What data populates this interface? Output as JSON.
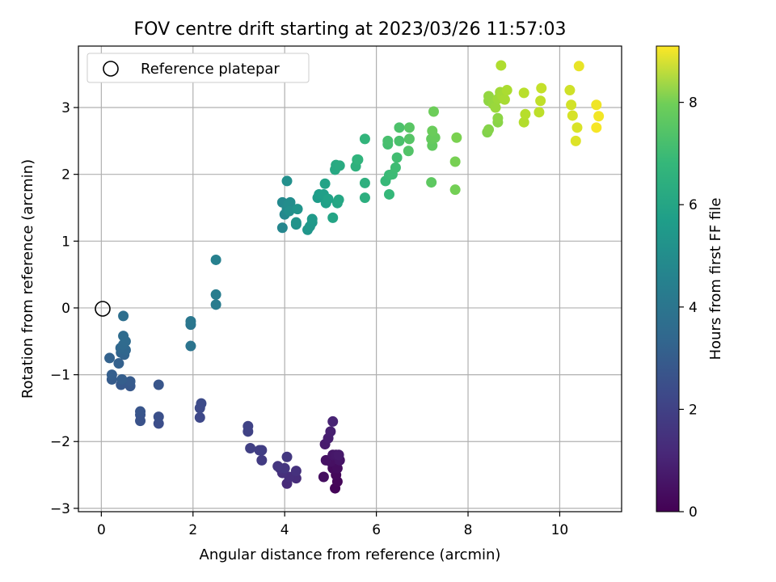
{
  "chart_data": {
    "type": "scatter",
    "title": "FOV centre drift starting at 2023/03/26 11:57:03",
    "xlabel": "Angular distance from reference (arcmin)",
    "ylabel": "Rotation from reference (arcmin)",
    "xlim": [
      -0.5,
      11.35
    ],
    "ylim": [
      -3.05,
      3.92
    ],
    "xticks": [
      0,
      2,
      4,
      6,
      8,
      10
    ],
    "yticks": [
      -3,
      -2,
      -1,
      0,
      1,
      2,
      3
    ],
    "grid": true,
    "legend": {
      "position": "top-left",
      "entries": [
        {
          "label": "Reference platepar",
          "marker": "open-circle"
        }
      ]
    },
    "reference_point": {
      "x": 0,
      "y": 0
    },
    "colorbar": {
      "label": "Hours from first FF file",
      "colormap": "viridis",
      "range": [
        0,
        9.1
      ],
      "ticks": [
        0,
        2,
        4,
        6,
        8
      ]
    },
    "points": [
      {
        "x": 5.1,
        "y": -2.7,
        "t": 0.1
      },
      {
        "x": 5.15,
        "y": -2.6,
        "t": 0.15
      },
      {
        "x": 5.12,
        "y": -2.5,
        "t": 0.2
      },
      {
        "x": 5.05,
        "y": -2.4,
        "t": 0.25
      },
      {
        "x": 5.15,
        "y": -2.4,
        "t": 0.3
      },
      {
        "x": 4.85,
        "y": -2.53,
        "t": 0.35
      },
      {
        "x": 5.0,
        "y": -2.3,
        "t": 0.4
      },
      {
        "x": 4.9,
        "y": -2.28,
        "t": 0.45
      },
      {
        "x": 5.2,
        "y": -2.28,
        "t": 0.5
      },
      {
        "x": 5.05,
        "y": -2.2,
        "t": 0.55
      },
      {
        "x": 5.12,
        "y": -2.2,
        "t": 0.6
      },
      {
        "x": 5.18,
        "y": -2.2,
        "t": 0.65
      },
      {
        "x": 4.88,
        "y": -2.04,
        "t": 0.7
      },
      {
        "x": 4.95,
        "y": -1.95,
        "t": 0.75
      },
      {
        "x": 5.0,
        "y": -1.85,
        "t": 0.8
      },
      {
        "x": 5.05,
        "y": -1.7,
        "t": 0.9
      },
      {
        "x": 4.05,
        "y": -2.63,
        "t": 1.1
      },
      {
        "x": 4.25,
        "y": -2.55,
        "t": 1.15
      },
      {
        "x": 4.1,
        "y": -2.53,
        "t": 1.2
      },
      {
        "x": 3.95,
        "y": -2.47,
        "t": 1.25
      },
      {
        "x": 4.25,
        "y": -2.44,
        "t": 1.3
      },
      {
        "x": 3.9,
        "y": -2.4,
        "t": 1.35
      },
      {
        "x": 4.0,
        "y": -2.4,
        "t": 1.4
      },
      {
        "x": 3.85,
        "y": -2.37,
        "t": 1.45
      },
      {
        "x": 4.05,
        "y": -2.23,
        "t": 1.5
      },
      {
        "x": 3.5,
        "y": -2.28,
        "t": 1.6
      },
      {
        "x": 3.5,
        "y": -2.13,
        "t": 1.65
      },
      {
        "x": 3.45,
        "y": -2.13,
        "t": 1.7
      },
      {
        "x": 3.25,
        "y": -2.1,
        "t": 1.75
      },
      {
        "x": 3.2,
        "y": -1.85,
        "t": 1.8
      },
      {
        "x": 3.2,
        "y": -1.77,
        "t": 1.85
      },
      {
        "x": 2.15,
        "y": -1.64,
        "t": 2.0
      },
      {
        "x": 2.15,
        "y": -1.5,
        "t": 2.05
      },
      {
        "x": 2.18,
        "y": -1.43,
        "t": 2.1
      },
      {
        "x": 1.25,
        "y": -1.73,
        "t": 2.2
      },
      {
        "x": 1.25,
        "y": -1.63,
        "t": 2.25
      },
      {
        "x": 0.85,
        "y": -1.69,
        "t": 2.3
      },
      {
        "x": 0.85,
        "y": -1.6,
        "t": 2.35
      },
      {
        "x": 0.85,
        "y": -1.55,
        "t": 2.4
      },
      {
        "x": 1.25,
        "y": -1.15,
        "t": 2.45
      },
      {
        "x": 0.63,
        "y": -1.17,
        "t": 2.5
      },
      {
        "x": 0.43,
        "y": -1.15,
        "t": 2.55
      },
      {
        "x": 0.63,
        "y": -1.1,
        "t": 2.6
      },
      {
        "x": 0.23,
        "y": -1.07,
        "t": 2.65
      },
      {
        "x": 0.45,
        "y": -1.07,
        "t": 2.7
      },
      {
        "x": 0.23,
        "y": -1.0,
        "t": 2.75
      },
      {
        "x": 0.38,
        "y": -0.83,
        "t": 2.8
      },
      {
        "x": 0.18,
        "y": -0.75,
        "t": 2.85
      },
      {
        "x": 0.5,
        "y": -0.7,
        "t": 2.9
      },
      {
        "x": 0.43,
        "y": -0.67,
        "t": 2.95
      },
      {
        "x": 0.53,
        "y": -0.63,
        "t": 3.0
      },
      {
        "x": 0.42,
        "y": -0.6,
        "t": 3.05
      },
      {
        "x": 0.48,
        "y": -0.55,
        "t": 3.1
      },
      {
        "x": 0.53,
        "y": -0.5,
        "t": 3.15
      },
      {
        "x": 0.48,
        "y": -0.42,
        "t": 3.2
      },
      {
        "x": 0.48,
        "y": -0.12,
        "t": 3.3
      },
      {
        "x": 1.95,
        "y": -0.57,
        "t": 3.5
      },
      {
        "x": 1.95,
        "y": -0.25,
        "t": 3.55
      },
      {
        "x": 1.95,
        "y": -0.2,
        "t": 3.6
      },
      {
        "x": 2.5,
        "y": 0.05,
        "t": 3.8
      },
      {
        "x": 2.5,
        "y": 0.2,
        "t": 3.85
      },
      {
        "x": 2.5,
        "y": 0.72,
        "t": 3.95
      },
      {
        "x": 3.95,
        "y": 1.2,
        "t": 4.2
      },
      {
        "x": 4.0,
        "y": 1.4,
        "t": 4.25
      },
      {
        "x": 3.95,
        "y": 1.58,
        "t": 4.3
      },
      {
        "x": 4.05,
        "y": 1.48,
        "t": 4.35
      },
      {
        "x": 4.08,
        "y": 1.55,
        "t": 4.4
      },
      {
        "x": 4.12,
        "y": 1.58,
        "t": 4.45
      },
      {
        "x": 4.1,
        "y": 1.45,
        "t": 4.5
      },
      {
        "x": 4.05,
        "y": 1.9,
        "t": 4.55
      },
      {
        "x": 4.25,
        "y": 1.25,
        "t": 4.6
      },
      {
        "x": 4.25,
        "y": 1.28,
        "t": 4.65
      },
      {
        "x": 4.28,
        "y": 1.48,
        "t": 4.7
      },
      {
        "x": 4.5,
        "y": 1.17,
        "t": 4.75
      },
      {
        "x": 4.55,
        "y": 1.22,
        "t": 4.8
      },
      {
        "x": 4.6,
        "y": 1.28,
        "t": 4.85
      },
      {
        "x": 4.6,
        "y": 1.33,
        "t": 4.9
      },
      {
        "x": 4.72,
        "y": 1.65,
        "t": 5.0
      },
      {
        "x": 4.75,
        "y": 1.7,
        "t": 5.05
      },
      {
        "x": 4.85,
        "y": 1.7,
        "t": 5.1
      },
      {
        "x": 4.9,
        "y": 1.57,
        "t": 5.15
      },
      {
        "x": 4.95,
        "y": 1.63,
        "t": 5.2
      },
      {
        "x": 4.88,
        "y": 1.86,
        "t": 5.25
      },
      {
        "x": 5.05,
        "y": 1.35,
        "t": 5.3
      },
      {
        "x": 5.15,
        "y": 1.57,
        "t": 5.35
      },
      {
        "x": 5.18,
        "y": 1.62,
        "t": 5.4
      },
      {
        "x": 5.1,
        "y": 2.07,
        "t": 5.45
      },
      {
        "x": 5.12,
        "y": 2.14,
        "t": 5.5
      },
      {
        "x": 5.2,
        "y": 2.13,
        "t": 5.55
      },
      {
        "x": 5.75,
        "y": 1.65,
        "t": 5.7
      },
      {
        "x": 5.75,
        "y": 1.87,
        "t": 5.75
      },
      {
        "x": 5.55,
        "y": 2.12,
        "t": 5.8
      },
      {
        "x": 5.58,
        "y": 2.22,
        "t": 5.85
      },
      {
        "x": 5.6,
        "y": 2.22,
        "t": 5.9
      },
      {
        "x": 5.75,
        "y": 2.53,
        "t": 5.95
      },
      {
        "x": 6.28,
        "y": 1.7,
        "t": 6.05
      },
      {
        "x": 6.2,
        "y": 1.9,
        "t": 6.1
      },
      {
        "x": 6.28,
        "y": 1.99,
        "t": 6.15
      },
      {
        "x": 6.35,
        "y": 2.0,
        "t": 6.2
      },
      {
        "x": 6.42,
        "y": 2.1,
        "t": 6.25
      },
      {
        "x": 6.45,
        "y": 2.25,
        "t": 6.3
      },
      {
        "x": 6.25,
        "y": 2.45,
        "t": 6.35
      },
      {
        "x": 6.25,
        "y": 2.5,
        "t": 6.4
      },
      {
        "x": 6.5,
        "y": 2.5,
        "t": 6.45
      },
      {
        "x": 6.5,
        "y": 2.7,
        "t": 6.5
      },
      {
        "x": 6.7,
        "y": 2.35,
        "t": 6.6
      },
      {
        "x": 6.72,
        "y": 2.53,
        "t": 6.65
      },
      {
        "x": 6.72,
        "y": 2.7,
        "t": 6.7
      },
      {
        "x": 7.2,
        "y": 1.88,
        "t": 6.8
      },
      {
        "x": 7.22,
        "y": 2.43,
        "t": 6.85
      },
      {
        "x": 7.2,
        "y": 2.53,
        "t": 6.9
      },
      {
        "x": 7.28,
        "y": 2.55,
        "t": 6.95
      },
      {
        "x": 7.22,
        "y": 2.65,
        "t": 7.0
      },
      {
        "x": 7.25,
        "y": 2.94,
        "t": 7.05
      },
      {
        "x": 7.72,
        "y": 1.77,
        "t": 7.15
      },
      {
        "x": 7.72,
        "y": 2.19,
        "t": 7.2
      },
      {
        "x": 7.75,
        "y": 2.55,
        "t": 7.25
      },
      {
        "x": 8.42,
        "y": 2.63,
        "t": 7.35
      },
      {
        "x": 8.45,
        "y": 2.67,
        "t": 7.4
      },
      {
        "x": 8.65,
        "y": 2.78,
        "t": 7.45
      },
      {
        "x": 8.65,
        "y": 2.84,
        "t": 7.5
      },
      {
        "x": 8.45,
        "y": 3.1,
        "t": 7.55
      },
      {
        "x": 8.45,
        "y": 3.17,
        "t": 7.6
      },
      {
        "x": 8.55,
        "y": 3.05,
        "t": 7.65
      },
      {
        "x": 8.6,
        "y": 3.0,
        "t": 7.7
      },
      {
        "x": 8.65,
        "y": 3.13,
        "t": 7.75
      },
      {
        "x": 8.7,
        "y": 3.23,
        "t": 7.8
      },
      {
        "x": 8.75,
        "y": 3.17,
        "t": 7.85
      },
      {
        "x": 8.8,
        "y": 3.12,
        "t": 7.9
      },
      {
        "x": 8.85,
        "y": 3.26,
        "t": 7.95
      },
      {
        "x": 8.72,
        "y": 3.63,
        "t": 8.0
      },
      {
        "x": 9.22,
        "y": 2.78,
        "t": 8.05
      },
      {
        "x": 9.25,
        "y": 2.9,
        "t": 8.1
      },
      {
        "x": 9.22,
        "y": 3.22,
        "t": 8.15
      },
      {
        "x": 9.55,
        "y": 2.93,
        "t": 8.2
      },
      {
        "x": 9.58,
        "y": 3.1,
        "t": 8.25
      },
      {
        "x": 9.6,
        "y": 3.29,
        "t": 8.3
      },
      {
        "x": 10.22,
        "y": 3.26,
        "t": 8.45
      },
      {
        "x": 10.25,
        "y": 3.04,
        "t": 8.5
      },
      {
        "x": 10.28,
        "y": 2.88,
        "t": 8.55
      },
      {
        "x": 10.38,
        "y": 2.7,
        "t": 8.6
      },
      {
        "x": 10.35,
        "y": 2.5,
        "t": 8.65
      },
      {
        "x": 10.42,
        "y": 3.62,
        "t": 8.8
      },
      {
        "x": 10.8,
        "y": 3.04,
        "t": 8.9
      },
      {
        "x": 10.85,
        "y": 2.87,
        "t": 8.95
      },
      {
        "x": 10.8,
        "y": 2.7,
        "t": 9.0
      }
    ]
  }
}
